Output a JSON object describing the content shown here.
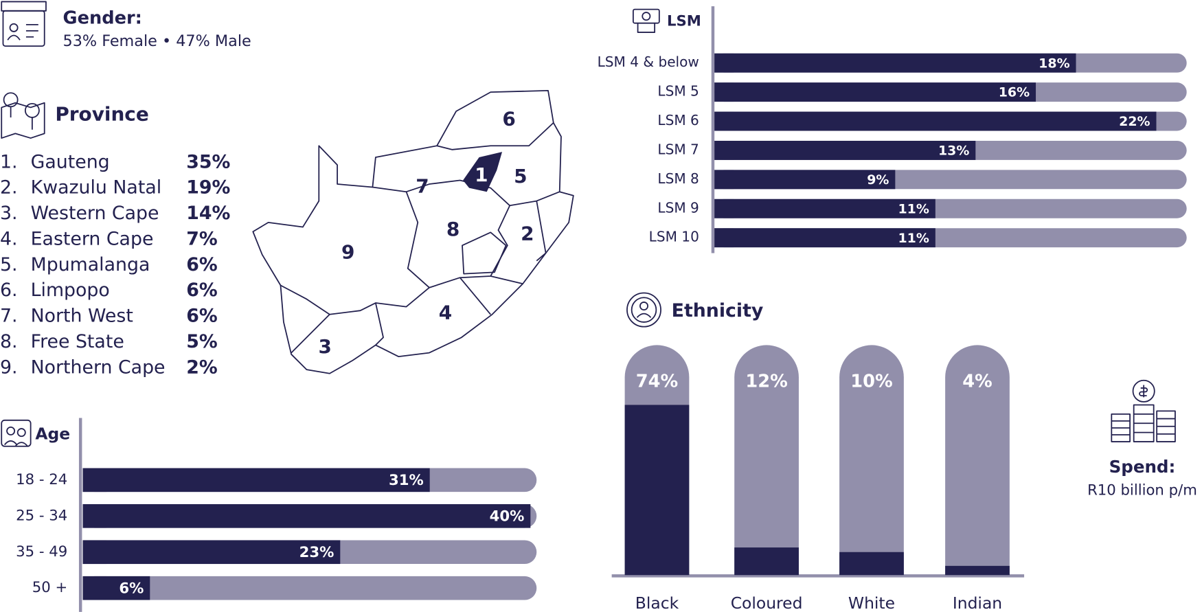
{
  "gender": {
    "title": "Gender:",
    "text": "53% Female • 47% Male"
  },
  "province": {
    "title": "Province",
    "items": [
      {
        "rank": "1.",
        "name": "Gauteng",
        "value": "35%"
      },
      {
        "rank": "2.",
        "name": "Kwazulu Natal",
        "value": "19%"
      },
      {
        "rank": "3.",
        "name": "Western Cape",
        "value": "14%"
      },
      {
        "rank": "4.",
        "name": "Eastern Cape",
        "value": "7%"
      },
      {
        "rank": "5.",
        "name": "Mpumalanga",
        "value": "6%"
      },
      {
        "rank": "6.",
        "name": "Limpopo",
        "value": "6%"
      },
      {
        "rank": "7.",
        "name": "North West",
        "value": "6%"
      },
      {
        "rank": "8.",
        "name": "Free State",
        "value": "5%"
      },
      {
        "rank": "9.",
        "name": "Northern Cape",
        "value": "2%"
      }
    ],
    "map_labels": [
      "1",
      "2",
      "3",
      "4",
      "5",
      "6",
      "7",
      "8",
      "9"
    ]
  },
  "chart_data": [
    {
      "type": "bar",
      "orientation": "horizontal",
      "title": "Age",
      "categories": [
        "18 - 24",
        "25 - 34",
        "35 - 49",
        "50 +"
      ],
      "values": [
        31,
        40,
        23,
        6
      ],
      "value_labels": [
        "31%",
        "40%",
        "23%",
        "6%"
      ],
      "color": "#23214f",
      "background_color": "#928fab"
    },
    {
      "type": "bar",
      "orientation": "horizontal",
      "title": "LSM",
      "categories": [
        "LSM 4 & below",
        "LSM 5",
        "LSM 6",
        "LSM 7",
        "LSM 8",
        "LSM 9",
        "LSM 10"
      ],
      "values": [
        18,
        16,
        22,
        13,
        9,
        11,
        11
      ],
      "value_labels": [
        "18%",
        "16%",
        "22%",
        "13%",
        "9%",
        "11%",
        "11%"
      ],
      "color": "#23214f",
      "background_color": "#928fab"
    },
    {
      "type": "bar",
      "orientation": "vertical",
      "title": "Ethnicity",
      "categories": [
        "Black",
        "Coloured",
        "White",
        "Indian"
      ],
      "values": [
        74,
        12,
        10,
        4
      ],
      "value_labels": [
        "74%",
        "12%",
        "10%",
        "4%"
      ],
      "color": "#23214f",
      "background_color": "#928fab"
    }
  ],
  "spend": {
    "title": "Spend:",
    "text": "R10 billion p/m"
  }
}
